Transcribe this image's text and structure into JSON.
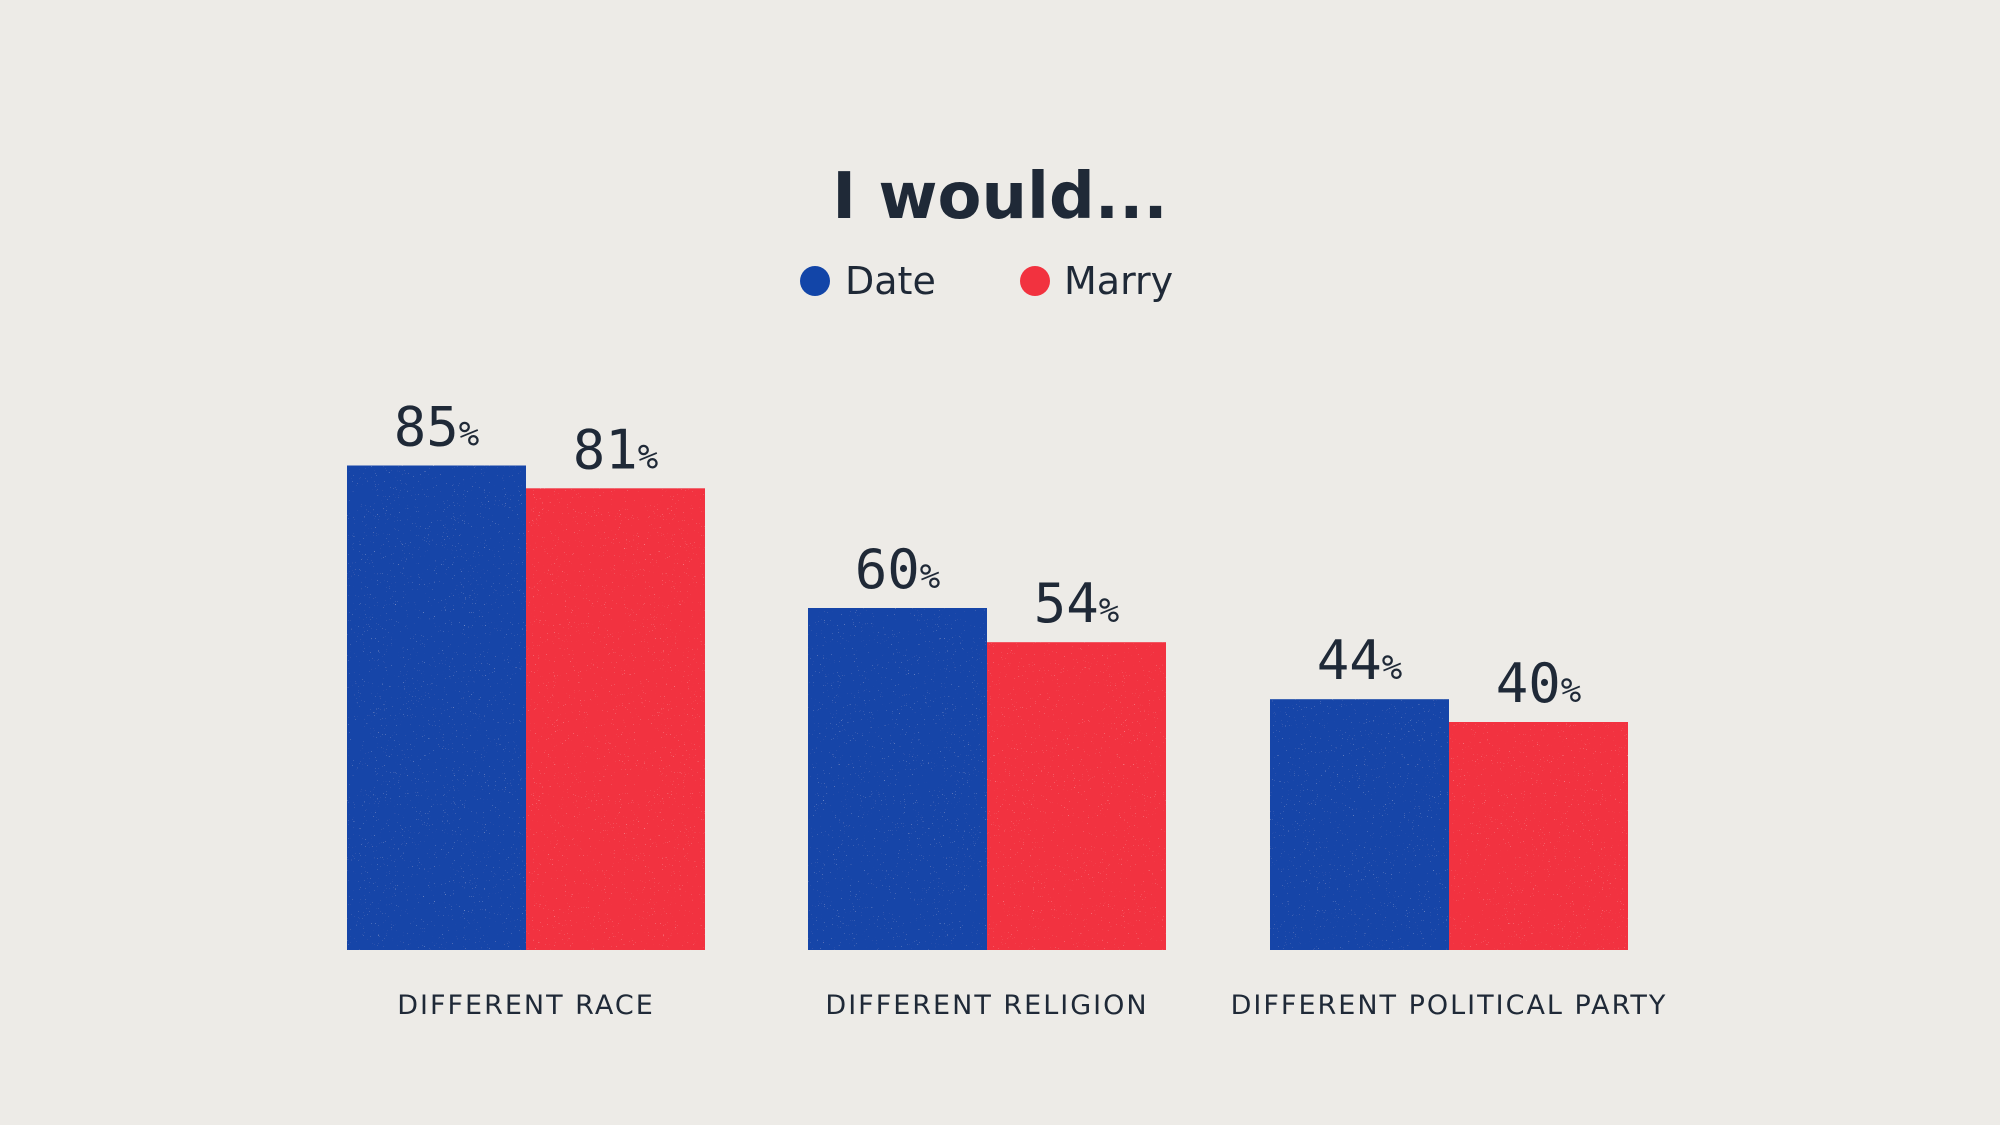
{
  "colors": {
    "background": "#edebe7",
    "text": "#1f2937",
    "date": "#1245a8",
    "marry": "#f2323f"
  },
  "chart_data": {
    "type": "bar",
    "title": "I would...",
    "categories": [
      "DIFFERENT RACE",
      "DIFFERENT RELIGION",
      "DIFFERENT POLITICAL PARTY"
    ],
    "series": [
      {
        "name": "Date",
        "values": [
          85,
          60,
          44
        ]
      },
      {
        "name": "Marry",
        "values": [
          81,
          54,
          40
        ]
      }
    ],
    "value_suffix": "%",
    "ylim": [
      0,
      100
    ],
    "grid": false,
    "legend": "top-center",
    "xlabel": "",
    "ylabel": ""
  }
}
